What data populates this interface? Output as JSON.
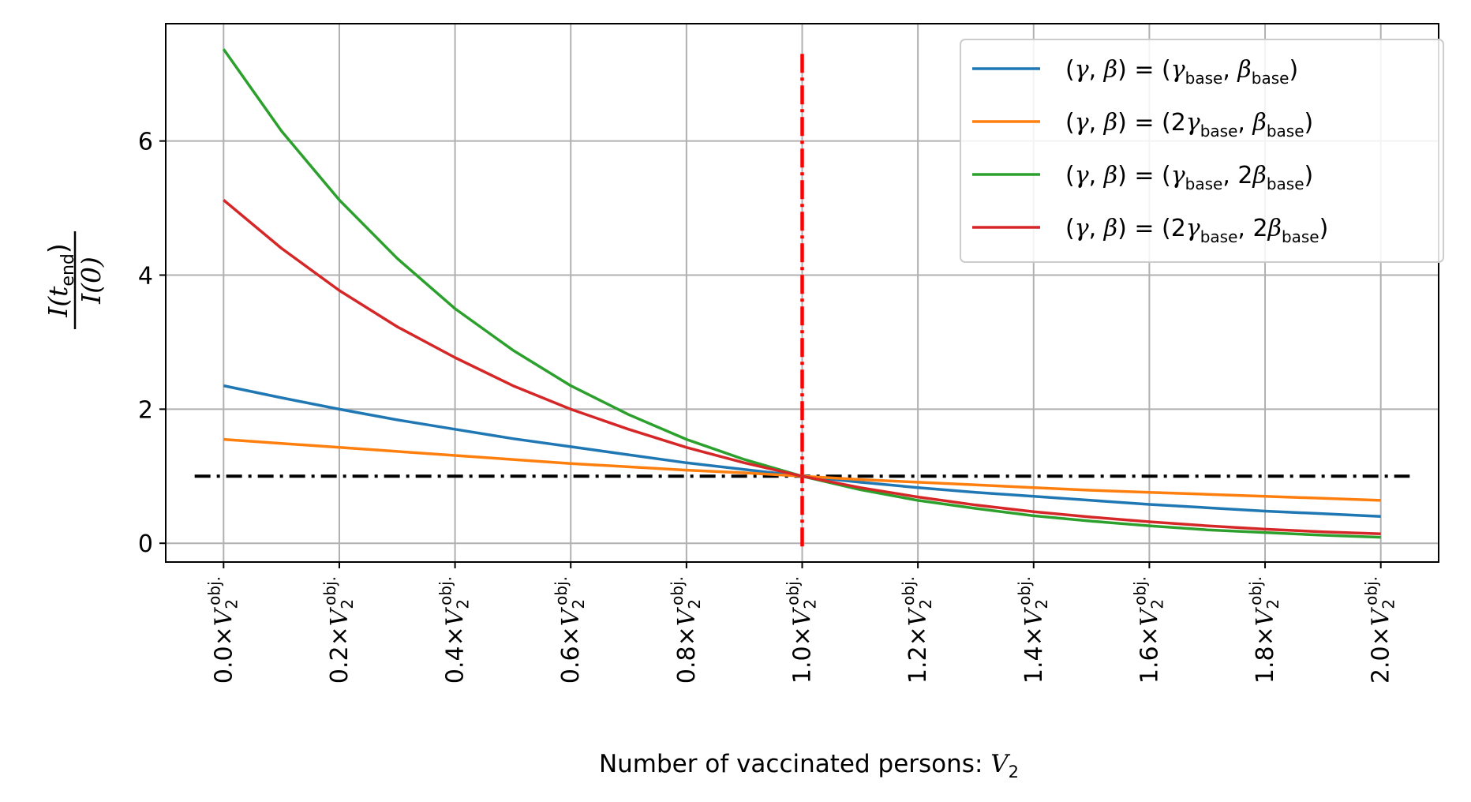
{
  "chart_data": {
    "type": "line",
    "xlabel_text": "Number of vaccinated persons: ",
    "xlabel_var": "V",
    "xlabel_sub": "2",
    "ylabel": {
      "numerator": "I(t",
      "numerator_sub": "end",
      "numerator_close": ")",
      "denominator": "I(0)"
    },
    "x": [
      0.0,
      0.1,
      0.2,
      0.3,
      0.4,
      0.5,
      0.6,
      0.7,
      0.8,
      0.9,
      1.0,
      1.1,
      1.2,
      1.3,
      1.4,
      1.5,
      1.6,
      1.7,
      1.8,
      1.9,
      2.0
    ],
    "xlim": [
      -0.1,
      2.1
    ],
    "ylim": [
      -0.28,
      7.75
    ],
    "xticks": [
      0.0,
      0.2,
      0.4,
      0.6,
      0.8,
      1.0,
      1.2,
      1.4,
      1.6,
      1.8,
      2.0
    ],
    "xtick_labels": [
      {
        "coef": "0.0×",
        "var": "V",
        "sub": "2",
        "sup": "obj."
      },
      {
        "coef": "0.2×",
        "var": "V",
        "sub": "2",
        "sup": "obj."
      },
      {
        "coef": "0.4×",
        "var": "V",
        "sub": "2",
        "sup": "obj."
      },
      {
        "coef": "0.6×",
        "var": "V",
        "sub": "2",
        "sup": "obj."
      },
      {
        "coef": "0.8×",
        "var": "V",
        "sub": "2",
        "sup": "obj."
      },
      {
        "coef": "1.0×",
        "var": "V",
        "sub": "2",
        "sup": "obj."
      },
      {
        "coef": "1.2×",
        "var": "V",
        "sub": "2",
        "sup": "obj."
      },
      {
        "coef": "1.4×",
        "var": "V",
        "sub": "2",
        "sup": "obj."
      },
      {
        "coef": "1.6×",
        "var": "V",
        "sub": "2",
        "sup": "obj."
      },
      {
        "coef": "1.8×",
        "var": "V",
        "sub": "2",
        "sup": "obj."
      },
      {
        "coef": "2.0×",
        "var": "V",
        "sub": "2",
        "sup": "obj."
      }
    ],
    "yticks": [
      0,
      2,
      4,
      6
    ],
    "ytick_labels": [
      "0",
      "2",
      "4",
      "6"
    ],
    "grid": true,
    "legend_position": "top-right",
    "series": [
      {
        "name": "(γ, β) = (γbase, βbase)",
        "legend": [
          {
            "t": "(",
            "s": "u"
          },
          {
            "t": "γ",
            "s": "i"
          },
          {
            "t": ", ",
            "s": "u"
          },
          {
            "t": "β",
            "s": "i"
          },
          {
            "t": ") = (",
            "s": "u"
          },
          {
            "t": "γ",
            "s": "i"
          },
          {
            "t": "base",
            "s": "sub"
          },
          {
            "t": ", ",
            "s": "u"
          },
          {
            "t": "β",
            "s": "i"
          },
          {
            "t": "base",
            "s": "sub"
          },
          {
            "t": ")",
            "s": "u"
          }
        ],
        "color": "#1f77b4",
        "values": [
          2.35,
          2.17,
          2.0,
          1.84,
          1.7,
          1.56,
          1.44,
          1.32,
          1.2,
          1.1,
          1.0,
          0.91,
          0.83,
          0.76,
          0.7,
          0.64,
          0.58,
          0.53,
          0.48,
          0.44,
          0.4
        ]
      },
      {
        "name": "(γ, β) = (2γbase, βbase)",
        "legend": [
          {
            "t": "(",
            "s": "u"
          },
          {
            "t": "γ",
            "s": "i"
          },
          {
            "t": ", ",
            "s": "u"
          },
          {
            "t": "β",
            "s": "i"
          },
          {
            "t": ") = (2",
            "s": "u"
          },
          {
            "t": "γ",
            "s": "i"
          },
          {
            "t": "base",
            "s": "sub"
          },
          {
            "t": ", ",
            "s": "u"
          },
          {
            "t": "β",
            "s": "i"
          },
          {
            "t": "base",
            "s": "sub"
          },
          {
            "t": ")",
            "s": "u"
          }
        ],
        "color": "#ff7f0e",
        "values": [
          1.55,
          1.49,
          1.43,
          1.37,
          1.31,
          1.25,
          1.19,
          1.14,
          1.09,
          1.05,
          1.0,
          0.95,
          0.91,
          0.87,
          0.83,
          0.79,
          0.76,
          0.73,
          0.7,
          0.67,
          0.64
        ]
      },
      {
        "name": "(γ, β) = (γbase, 2βbase)",
        "legend": [
          {
            "t": "(",
            "s": "u"
          },
          {
            "t": "γ",
            "s": "i"
          },
          {
            "t": ", ",
            "s": "u"
          },
          {
            "t": "β",
            "s": "i"
          },
          {
            "t": ") = (",
            "s": "u"
          },
          {
            "t": "γ",
            "s": "i"
          },
          {
            "t": "base",
            "s": "sub"
          },
          {
            "t": ", 2",
            "s": "u"
          },
          {
            "t": "β",
            "s": "i"
          },
          {
            "t": "base",
            "s": "sub"
          },
          {
            "t": ")",
            "s": "u"
          }
        ],
        "color": "#2ca02c",
        "values": [
          7.37,
          6.15,
          5.12,
          4.25,
          3.5,
          2.88,
          2.35,
          1.92,
          1.55,
          1.25,
          1.0,
          0.8,
          0.64,
          0.52,
          0.41,
          0.33,
          0.26,
          0.2,
          0.16,
          0.12,
          0.09
        ]
      },
      {
        "name": "(γ, β) = (2γbase, 2βbase)",
        "legend": [
          {
            "t": "(",
            "s": "u"
          },
          {
            "t": "γ",
            "s": "i"
          },
          {
            "t": ", ",
            "s": "u"
          },
          {
            "t": "β",
            "s": "i"
          },
          {
            "t": ") = (2",
            "s": "u"
          },
          {
            "t": "γ",
            "s": "i"
          },
          {
            "t": "base",
            "s": "sub"
          },
          {
            "t": ", 2",
            "s": "u"
          },
          {
            "t": "β",
            "s": "i"
          },
          {
            "t": "base",
            "s": "sub"
          },
          {
            "t": ")",
            "s": "u"
          }
        ],
        "color": "#d62728",
        "values": [
          5.12,
          4.4,
          3.77,
          3.23,
          2.77,
          2.35,
          2.0,
          1.7,
          1.43,
          1.2,
          1.0,
          0.83,
          0.69,
          0.57,
          0.47,
          0.39,
          0.32,
          0.26,
          0.21,
          0.17,
          0.14
        ]
      }
    ],
    "reference_lines": [
      {
        "orientation": "horizontal",
        "value": 1.0,
        "from_x": -0.05,
        "to_x": 2.05,
        "color": "#000000",
        "style": "dash-dot"
      },
      {
        "orientation": "vertical",
        "value": 1.0,
        "from_y": -0.1,
        "to_y": 7.3,
        "color": "#ff0000",
        "style": "dash-dot"
      }
    ]
  }
}
